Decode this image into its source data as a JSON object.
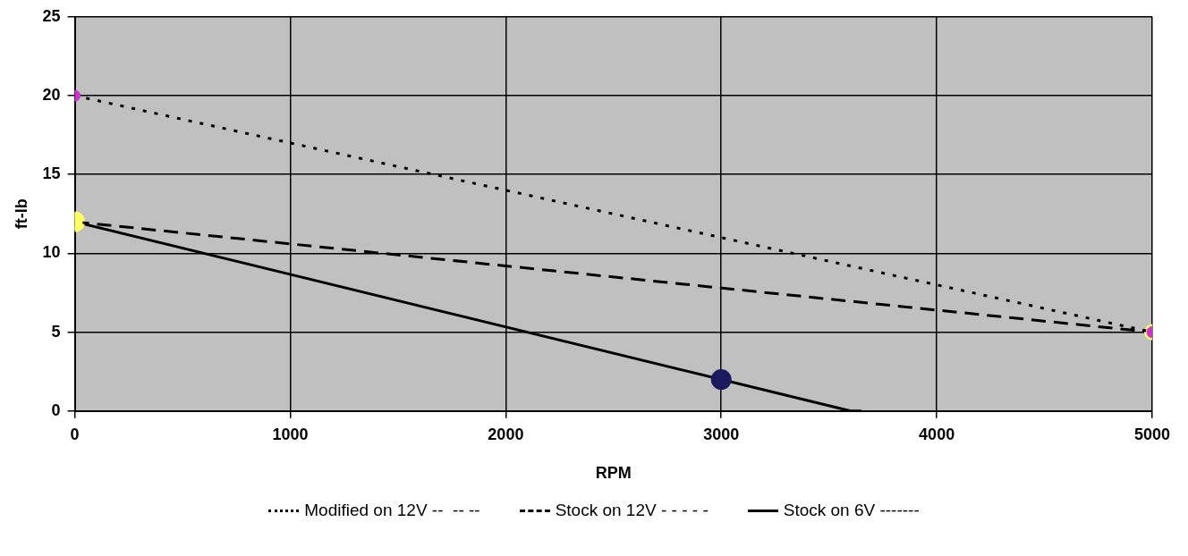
{
  "chart_data": {
    "type": "line",
    "xlabel": "RPM",
    "ylabel": "ft-lb",
    "xlim": [
      0,
      5000
    ],
    "xticks": [
      0,
      1000,
      2000,
      3000,
      4000,
      5000
    ],
    "ylim": [
      0,
      25
    ],
    "yticks": [
      0,
      5,
      10,
      15,
      20,
      25
    ],
    "grid": true,
    "legend": "bottom",
    "marker": "circle",
    "series": [
      {
        "name": "Modified on 12V --  -- --",
        "color": "#000000",
        "line_style": "dotted",
        "x": [
          0,
          5000
        ],
        "values": [
          20,
          5
        ],
        "colors": [
          "#cc33cc",
          "#cc33cc"
        ]
      },
      {
        "name": "Stock on 12V - - - - -",
        "color": "#000000",
        "line_style": "dashed",
        "x": [
          0,
          5000
        ],
        "values": [
          12,
          5
        ],
        "colors": [
          "#ffff66",
          "#ffff66"
        ]
      },
      {
        "name": "Stock on 6V -------",
        "color": "#000000",
        "line_style": "solid",
        "x": [
          0,
          3000,
          3600,
          3650
        ],
        "values": [
          12,
          2,
          0,
          0
        ],
        "colors": [
          "#ffff66",
          "#1a1a5e",
          null,
          null
        ]
      }
    ]
  }
}
